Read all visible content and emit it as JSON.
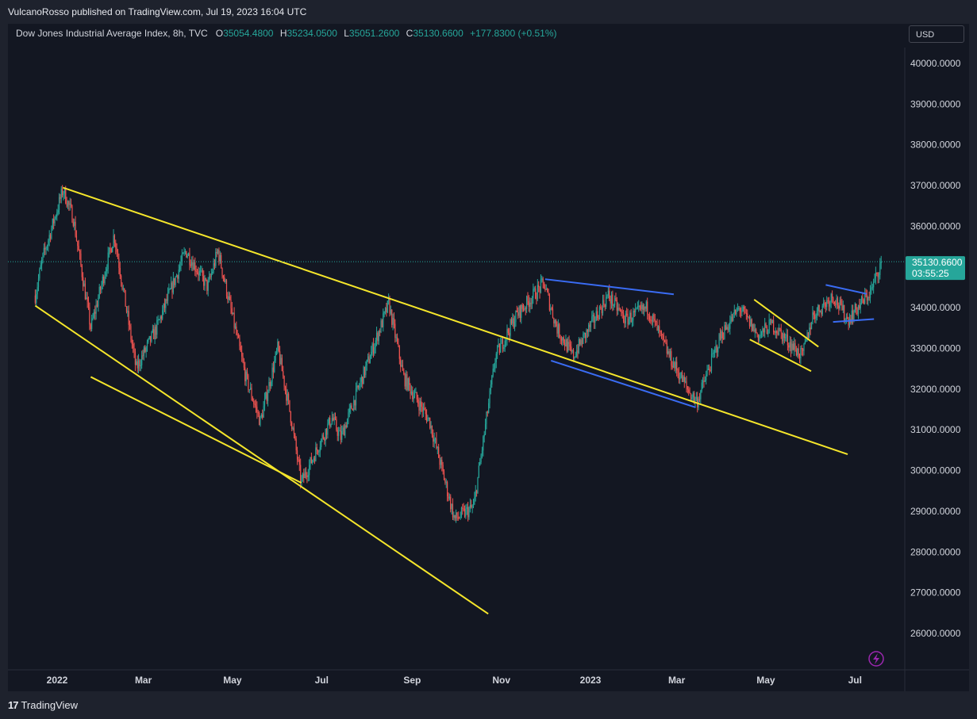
{
  "publish_info": "VulcanoRosso published on TradingView.com, Jul 19, 2023 16:04 UTC",
  "footer_brand": "TradingView",
  "legend": {
    "symbol": "Dow Jones Industrial Average Index, 8h, TVC",
    "open_label": "O",
    "open": "35054.4800",
    "high_label": "H",
    "high": "35234.0500",
    "low_label": "L",
    "low": "35051.2600",
    "close_label": "C",
    "close": "35130.6600",
    "change": "+177.8300 (+0.51%)"
  },
  "currency_button": "USD",
  "price_label": {
    "value": "35130.6600",
    "countdown": "03:55:25"
  },
  "colors": {
    "up": "#26a69a",
    "down": "#ef5350",
    "trend_yellow": "#f5e62b",
    "trend_blue": "#3a6cf4",
    "price_tag": "#26a69a"
  },
  "chart_data": {
    "type": "candlestick",
    "title": "Dow Jones Industrial Average Index, 8h, TVC",
    "yaxis_ticks": [
      "40000.0000",
      "39000.0000",
      "38000.0000",
      "37000.0000",
      "36000.0000",
      "35000.0000",
      "34000.0000",
      "33000.0000",
      "32000.0000",
      "31000.0000",
      "30000.0000",
      "29000.0000",
      "28000.0000",
      "27000.0000",
      "26000.0000"
    ],
    "xaxis_ticks": [
      "2022",
      "Mar",
      "May",
      "Jul",
      "Sep",
      "Nov",
      "2023",
      "Mar",
      "May",
      "Jul"
    ],
    "ylim": [
      25200,
      40500
    ],
    "last_price": 35130.66,
    "price_path": [
      [
        "2021-12-17",
        34300
      ],
      [
        "2021-12-22",
        35200
      ],
      [
        "2022-01-05",
        36900
      ],
      [
        "2022-01-12",
        36200
      ],
      [
        "2022-01-24",
        33500
      ],
      [
        "2022-02-09",
        35800
      ],
      [
        "2022-02-24",
        32500
      ],
      [
        "2022-03-10",
        33500
      ],
      [
        "2022-03-30",
        35400
      ],
      [
        "2022-04-14",
        34500
      ],
      [
        "2022-04-21",
        35400
      ],
      [
        "2022-05-10",
        32300
      ],
      [
        "2022-05-20",
        31200
      ],
      [
        "2022-06-01",
        33000
      ],
      [
        "2022-06-10",
        31300
      ],
      [
        "2022-06-17",
        29700
      ],
      [
        "2022-07-08",
        31300
      ],
      [
        "2022-07-14",
        30800
      ],
      [
        "2022-08-16",
        34100
      ],
      [
        "2022-08-26",
        32300
      ],
      [
        "2022-09-13",
        31200
      ],
      [
        "2022-09-30",
        28800
      ],
      [
        "2022-10-13",
        29100
      ],
      [
        "2022-10-28",
        32800
      ],
      [
        "2022-11-11",
        33800
      ],
      [
        "2022-11-30",
        34600
      ],
      [
        "2022-12-09",
        33500
      ],
      [
        "2022-12-20",
        32800
      ],
      [
        "2023-01-13",
        34300
      ],
      [
        "2023-01-25",
        33700
      ],
      [
        "2023-02-09",
        34000
      ],
      [
        "2023-02-24",
        32800
      ],
      [
        "2023-03-10",
        31900
      ],
      [
        "2023-03-15",
        31700
      ],
      [
        "2023-03-31",
        33300
      ],
      [
        "2023-04-13",
        34000
      ],
      [
        "2023-04-26",
        33300
      ],
      [
        "2023-05-05",
        33600
      ],
      [
        "2023-05-26",
        32800
      ],
      [
        "2023-06-02",
        33800
      ],
      [
        "2023-06-16",
        34300
      ],
      [
        "2023-06-26",
        33700
      ],
      [
        "2023-07-12",
        34400
      ],
      [
        "2023-07-19",
        35130.66
      ]
    ],
    "trendlines": [
      {
        "color": "yellow",
        "from": [
          "2022-01-05",
          36950
        ],
        "to": [
          "2023-06-26",
          30400
        ]
      },
      {
        "color": "yellow",
        "from": [
          "2021-12-17",
          34050
        ],
        "to": [
          "2022-10-23",
          26480
        ]
      },
      {
        "color": "yellow",
        "from": [
          "2022-01-24",
          32300
        ],
        "to": [
          "2022-06-17",
          29700
        ]
      },
      {
        "color": "blue",
        "from": [
          "2022-12-01",
          34700
        ],
        "to": [
          "2023-02-27",
          34330
        ]
      },
      {
        "color": "blue",
        "from": [
          "2022-12-05",
          32700
        ],
        "to": [
          "2023-03-14",
          31550
        ]
      },
      {
        "color": "yellow",
        "from": [
          "2023-04-23",
          34200
        ],
        "to": [
          "2023-06-06",
          33040
        ]
      },
      {
        "color": "yellow",
        "from": [
          "2023-04-20",
          33220
        ],
        "to": [
          "2023-06-01",
          32440
        ]
      },
      {
        "color": "blue",
        "from": [
          "2023-06-11",
          34560
        ],
        "to": [
          "2023-07-09",
          34340
        ]
      },
      {
        "color": "blue",
        "from": [
          "2023-06-16",
          33650
        ],
        "to": [
          "2023-07-14",
          33720
        ]
      }
    ],
    "grid": false
  }
}
